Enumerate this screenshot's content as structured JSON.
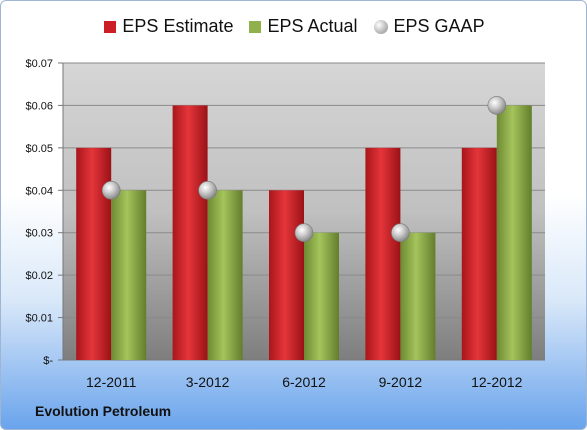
{
  "chart_data": {
    "type": "bar",
    "categories": [
      "12-2011",
      "3-2012",
      "6-2012",
      "9-2012",
      "12-2012"
    ],
    "series": [
      {
        "name": "EPS Estimate",
        "kind": "bar",
        "color": "#cc1f25",
        "values": [
          0.05,
          0.06,
          0.04,
          0.05,
          0.05
        ]
      },
      {
        "name": "EPS Actual",
        "kind": "bar",
        "color": "#8fb04a",
        "values": [
          0.04,
          0.04,
          0.03,
          0.03,
          0.06
        ]
      },
      {
        "name": "EPS GAAP",
        "kind": "marker",
        "color": "#b8b8b8",
        "values": [
          0.04,
          0.04,
          0.03,
          0.03,
          0.06
        ]
      }
    ],
    "ylim": [
      0,
      0.07
    ],
    "yticks": [
      0,
      0.01,
      0.02,
      0.03,
      0.04,
      0.05,
      0.06,
      0.07
    ],
    "ytick_labels": [
      "$-",
      "$0.01",
      "$0.02",
      "$0.03",
      "$0.04",
      "$0.05",
      "$0.06",
      "$0.07"
    ],
    "grid": true,
    "legend_position": "top-center"
  },
  "footer": {
    "company": "Evolution Petroleum"
  }
}
